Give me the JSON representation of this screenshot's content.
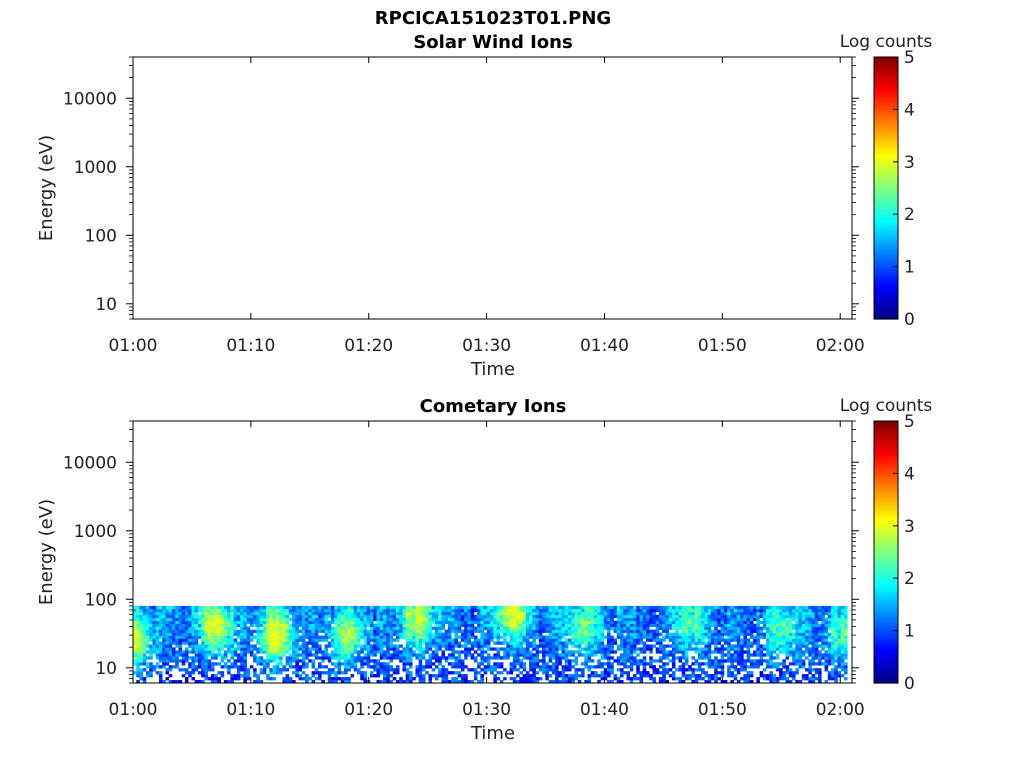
{
  "figure_title": "RPCICA151023T01.PNG",
  "colors": {
    "jet": [
      "#00007f",
      "#0000ff",
      "#007fff",
      "#00ffff",
      "#7fff7f",
      "#ffff00",
      "#ff7f00",
      "#ff0000",
      "#7f0000"
    ],
    "frame": "#000000",
    "background": "#ffffff"
  },
  "chart_data": [
    {
      "type": "heatmap",
      "title": "Solar Wind Ions",
      "xlabel": "Time",
      "ylabel": "Energy (eV)",
      "x_ticks": [
        "01:00",
        "01:10",
        "01:20",
        "01:30",
        "01:40",
        "01:50",
        "02:00"
      ],
      "x_range_minutes": [
        0,
        61
      ],
      "y_scale": "log",
      "y_ticks": [
        "10",
        "100",
        "1000",
        "10000"
      ],
      "y_range": [
        6,
        40000
      ],
      "colorbar": {
        "label": "Log counts",
        "ticks": [
          "0",
          "1",
          "2",
          "3",
          "4",
          "5"
        ],
        "range": [
          0,
          5
        ]
      },
      "data": "empty",
      "cells": []
    },
    {
      "type": "heatmap",
      "title": "Cometary Ions",
      "xlabel": "Time",
      "ylabel": "Energy (eV)",
      "x_ticks": [
        "01:00",
        "01:10",
        "01:20",
        "01:30",
        "01:40",
        "01:50",
        "02:00"
      ],
      "x_range_minutes": [
        0,
        61
      ],
      "y_scale": "log",
      "y_ticks": [
        "10",
        "100",
        "1000",
        "10000"
      ],
      "y_range": [
        6,
        40000
      ],
      "colorbar": {
        "label": "Log counts",
        "ticks": [
          "0",
          "1",
          "2",
          "3",
          "4",
          "5"
        ],
        "range": [
          0,
          5
        ]
      },
      "data_energy_range_eV": [
        6,
        80
      ],
      "peak_log_counts": 3.0,
      "hotspots": [
        {
          "time": "01:00",
          "energy_eV": 25,
          "log_counts": 2.8
        },
        {
          "time": "01:07",
          "energy_eV": 40,
          "log_counts": 2.9
        },
        {
          "time": "01:12",
          "energy_eV": 30,
          "log_counts": 3.0
        },
        {
          "time": "01:18",
          "energy_eV": 30,
          "log_counts": 2.6
        },
        {
          "time": "01:24",
          "energy_eV": 50,
          "log_counts": 2.7
        },
        {
          "time": "01:32",
          "energy_eV": 60,
          "log_counts": 2.8
        },
        {
          "time": "01:38",
          "energy_eV": 40,
          "log_counts": 2.3
        },
        {
          "time": "01:47",
          "energy_eV": 45,
          "log_counts": 2.2
        },
        {
          "time": "01:55",
          "energy_eV": 35,
          "log_counts": 2.2
        },
        {
          "time": "02:00",
          "energy_eV": 30,
          "log_counts": 2.0
        }
      ]
    }
  ]
}
